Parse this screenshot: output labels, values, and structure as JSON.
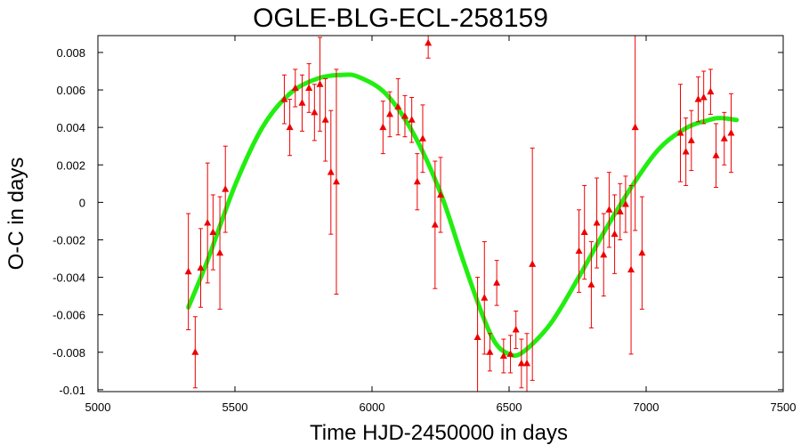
{
  "chart_data": {
    "type": "scatter",
    "title": "OGLE-BLG-ECL-258159",
    "xlabel": "Time HJD-2450000 in days",
    "ylabel": "O-C in days",
    "xlim": [
      5000,
      7500
    ],
    "ylim": [
      -0.0101,
      0.0089
    ],
    "x_ticks": [
      5000,
      5500,
      6000,
      6500,
      7000,
      7500
    ],
    "x_tick_labels": [
      "5000",
      "5500",
      "6000",
      "6500",
      "7000",
      "7500"
    ],
    "y_ticks": [
      -0.01,
      -0.008,
      -0.006,
      -0.004,
      -0.002,
      0,
      0.002,
      0.004,
      0.006,
      0.008
    ],
    "y_tick_labels": [
      "-0.01",
      "-0.008",
      "-0.006",
      "-0.004",
      "-0.002",
      "0",
      "0.002",
      "0.004",
      "0.006",
      "0.008"
    ],
    "grid": false,
    "colors": {
      "points": "#ee0000",
      "fit": "#22ee11"
    },
    "points": [
      {
        "x": 5330,
        "y": -0.0037,
        "err": 0.0031
      },
      {
        "x": 5355,
        "y": -0.008,
        "err": 0.0019
      },
      {
        "x": 5375,
        "y": -0.0035,
        "err": 0.0021
      },
      {
        "x": 5400,
        "y": -0.0011,
        "err": 0.0032
      },
      {
        "x": 5420,
        "y": -0.0016,
        "err": 0.002
      },
      {
        "x": 5445,
        "y": -0.0027,
        "err": 0.003
      },
      {
        "x": 5465,
        "y": 0.0007,
        "err": 0.0023
      },
      {
        "x": 5680,
        "y": 0.0055,
        "err": 0.0013
      },
      {
        "x": 5700,
        "y": 0.004,
        "err": 0.0015
      },
      {
        "x": 5720,
        "y": 0.0061,
        "err": 0.001
      },
      {
        "x": 5745,
        "y": 0.0053,
        "err": 0.0015
      },
      {
        "x": 5770,
        "y": 0.0061,
        "err": 0.0013
      },
      {
        "x": 5790,
        "y": 0.0048,
        "err": 0.0015
      },
      {
        "x": 5810,
        "y": 0.0063,
        "err": 0.0025
      },
      {
        "x": 5830,
        "y": 0.0044,
        "err": 0.0022
      },
      {
        "x": 5850,
        "y": 0.0016,
        "err": 0.0033
      },
      {
        "x": 5870,
        "y": 0.0011,
        "err": 0.006
      },
      {
        "x": 6040,
        "y": 0.004,
        "err": 0.0014
      },
      {
        "x": 6065,
        "y": 0.0047,
        "err": 0.0012
      },
      {
        "x": 6095,
        "y": 0.0051,
        "err": 0.0015
      },
      {
        "x": 6120,
        "y": 0.0046,
        "err": 0.0011
      },
      {
        "x": 6145,
        "y": 0.0044,
        "err": 0.0012
      },
      {
        "x": 6165,
        "y": 0.0011,
        "err": 0.0015
      },
      {
        "x": 6185,
        "y": 0.0034,
        "err": 0.0018
      },
      {
        "x": 6205,
        "y": 0.0085,
        "err": 0.0008
      },
      {
        "x": 6230,
        "y": -0.0012,
        "err": 0.0034
      },
      {
        "x": 6250,
        "y": 0.0004,
        "err": 0.002
      },
      {
        "x": 6385,
        "y": -0.0072,
        "err": 0.0032
      },
      {
        "x": 6410,
        "y": -0.0051,
        "err": 0.003
      },
      {
        "x": 6430,
        "y": -0.008,
        "err": 0.001
      },
      {
        "x": 6455,
        "y": -0.0043,
        "err": 0.0012
      },
      {
        "x": 6480,
        "y": -0.0082,
        "err": 0.0009
      },
      {
        "x": 6505,
        "y": -0.0081,
        "err": 0.001
      },
      {
        "x": 6525,
        "y": -0.0068,
        "err": 0.001
      },
      {
        "x": 6545,
        "y": -0.0086,
        "err": 0.0013
      },
      {
        "x": 6565,
        "y": -0.0086,
        "err": 0.0016
      },
      {
        "x": 6585,
        "y": -0.0033,
        "err": 0.0062
      },
      {
        "x": 6755,
        "y": -0.0026,
        "err": 0.0022
      },
      {
        "x": 6775,
        "y": -0.0016,
        "err": 0.0025
      },
      {
        "x": 6800,
        "y": -0.0044,
        "err": 0.0023
      },
      {
        "x": 6820,
        "y": -0.0011,
        "err": 0.0024
      },
      {
        "x": 6845,
        "y": -0.0028,
        "err": 0.0022
      },
      {
        "x": 6865,
        "y": -0.0004,
        "err": 0.002
      },
      {
        "x": 6885,
        "y": -0.0017,
        "err": 0.0021
      },
      {
        "x": 6905,
        "y": -0.0005,
        "err": 0.0015
      },
      {
        "x": 6925,
        "y": -0.0001,
        "err": 0.0015
      },
      {
        "x": 6945,
        "y": -0.0036,
        "err": 0.0045
      },
      {
        "x": 6960,
        "y": 0.004,
        "err": 0.0055
      },
      {
        "x": 6985,
        "y": -0.0027,
        "err": 0.003
      },
      {
        "x": 7125,
        "y": 0.0037,
        "err": 0.0026
      },
      {
        "x": 7145,
        "y": 0.0027,
        "err": 0.0018
      },
      {
        "x": 7165,
        "y": 0.0033,
        "err": 0.0016
      },
      {
        "x": 7190,
        "y": 0.0055,
        "err": 0.0012
      },
      {
        "x": 7210,
        "y": 0.0056,
        "err": 0.0014
      },
      {
        "x": 7235,
        "y": 0.0059,
        "err": 0.0012
      },
      {
        "x": 7255,
        "y": 0.0025,
        "err": 0.0017
      },
      {
        "x": 7285,
        "y": 0.0034,
        "err": 0.0014
      },
      {
        "x": 7310,
        "y": 0.0037,
        "err": 0.0021
      }
    ],
    "fit_curve": [
      {
        "x": 5330,
        "y": -0.0056
      },
      {
        "x": 5400,
        "y": -0.0031
      },
      {
        "x": 5500,
        "y": 0.0009
      },
      {
        "x": 5600,
        "y": 0.004
      },
      {
        "x": 5700,
        "y": 0.0058
      },
      {
        "x": 5800,
        "y": 0.0066
      },
      {
        "x": 5890,
        "y": 0.0068
      },
      {
        "x": 5950,
        "y": 0.0067
      },
      {
        "x": 6050,
        "y": 0.0058
      },
      {
        "x": 6150,
        "y": 0.0037
      },
      {
        "x": 6250,
        "y": 0.0005
      },
      {
        "x": 6330,
        "y": -0.003
      },
      {
        "x": 6400,
        "y": -0.0059
      },
      {
        "x": 6450,
        "y": -0.0075
      },
      {
        "x": 6500,
        "y": -0.0081
      },
      {
        "x": 6550,
        "y": -0.008
      },
      {
        "x": 6650,
        "y": -0.0065
      },
      {
        "x": 6750,
        "y": -0.0041
      },
      {
        "x": 6850,
        "y": -0.0015
      },
      {
        "x": 6950,
        "y": 0.0009
      },
      {
        "x": 7050,
        "y": 0.0029
      },
      {
        "x": 7150,
        "y": 0.004
      },
      {
        "x": 7230,
        "y": 0.0044
      },
      {
        "x": 7270,
        "y": 0.0045
      },
      {
        "x": 7330,
        "y": 0.0044
      }
    ]
  }
}
